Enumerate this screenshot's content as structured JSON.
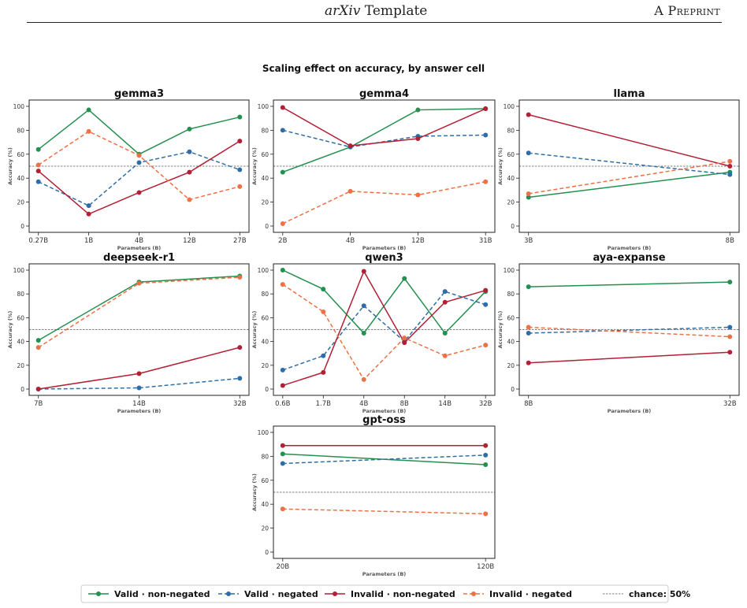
{
  "page_header": {
    "left_italic": "arXiv",
    "left_rest": " Template",
    "right": "A Preprint"
  },
  "figure_title": "Scaling effect on accuracy, by answer cell",
  "colors": {
    "valid_non_negated": "#22904e",
    "valid_negated": "#2f6da8",
    "invalid_non_negated": "#b31f34",
    "invalid_negated": "#ee7047",
    "chance": "#555555"
  },
  "legend": [
    {
      "label": "Valid · non-negated",
      "key": "valid_non_negated",
      "dashed": false
    },
    {
      "label": "Valid · negated",
      "key": "valid_negated",
      "dashed": true
    },
    {
      "label": "Invalid · non-negated",
      "key": "invalid_non_negated",
      "dashed": false
    },
    {
      "label": "Invalid · negated",
      "key": "invalid_negated",
      "dashed": true
    },
    {
      "label": "chance: 50%",
      "key": "chance",
      "dashed": true,
      "is_line_only": true
    }
  ],
  "chart_data": [
    {
      "type": "line",
      "title": "gemma3",
      "categories": [
        "0.27B",
        "1B",
        "4B",
        "12B",
        "27B"
      ],
      "xlabel": "Parameters (B)",
      "ylabel": "Accuracy (%)",
      "ylim": [
        0,
        100
      ],
      "yticks": [
        "0",
        "20",
        "40",
        "60",
        "80",
        "100"
      ],
      "chance": 50,
      "series": [
        {
          "name": "Valid · non-negated",
          "values": [
            64,
            97,
            60,
            81,
            91
          ]
        },
        {
          "name": "Valid · negated",
          "values": [
            37,
            17,
            53,
            62,
            47
          ]
        },
        {
          "name": "Invalid · non-negated",
          "values": [
            46,
            10,
            28,
            45,
            71
          ]
        },
        {
          "name": "Invalid · negated",
          "values": [
            51,
            79,
            59,
            22,
            33
          ]
        }
      ]
    },
    {
      "type": "line",
      "title": "gemma4",
      "categories": [
        "2B",
        "4B",
        "12B",
        "31B"
      ],
      "xlabel": "Parameters (B)",
      "ylabel": "Accuracy (%)",
      "ylim": [
        0,
        100
      ],
      "yticks": [
        "0",
        "20",
        "40",
        "60",
        "80",
        "100"
      ],
      "chance": 50,
      "series": [
        {
          "name": "Valid · non-negated",
          "values": [
            45,
            66,
            97,
            98
          ]
        },
        {
          "name": "Valid · negated",
          "values": [
            80,
            66,
            75,
            76
          ]
        },
        {
          "name": "Invalid · non-negated",
          "values": [
            99,
            67,
            73,
            98
          ]
        },
        {
          "name": "Invalid · negated",
          "values": [
            2,
            29,
            26,
            37
          ]
        }
      ]
    },
    {
      "type": "line",
      "title": "llama",
      "categories": [
        "3B",
        "8B"
      ],
      "xlabel": "Parameters (B)",
      "ylabel": "Accuracy (%)",
      "ylim": [
        0,
        100
      ],
      "yticks": [
        "0",
        "20",
        "40",
        "60",
        "80",
        "100"
      ],
      "chance": 50,
      "series": [
        {
          "name": "Valid · non-negated",
          "values": [
            24,
            45
          ]
        },
        {
          "name": "Valid · negated",
          "values": [
            61,
            43
          ]
        },
        {
          "name": "Invalid · non-negated",
          "values": [
            93,
            50
          ]
        },
        {
          "name": "Invalid · negated",
          "values": [
            27,
            54
          ]
        }
      ]
    },
    {
      "type": "line",
      "title": "deepseek-r1",
      "categories": [
        "7B",
        "14B",
        "32B"
      ],
      "xlabel": "Parameters (B)",
      "ylabel": "Accuracy (%)",
      "ylim": [
        0,
        100
      ],
      "yticks": [
        "0",
        "20",
        "40",
        "60",
        "80",
        "100"
      ],
      "chance": 50,
      "series": [
        {
          "name": "Valid · non-negated",
          "values": [
            41,
            90,
            95
          ]
        },
        {
          "name": "Valid · negated",
          "values": [
            0,
            1,
            9
          ]
        },
        {
          "name": "Invalid · non-negated",
          "values": [
            0,
            13,
            35
          ]
        },
        {
          "name": "Invalid · negated",
          "values": [
            35,
            89,
            94
          ]
        }
      ]
    },
    {
      "type": "line",
      "title": "qwen3",
      "categories": [
        "0.6B",
        "1.7B",
        "4B",
        "8B",
        "14B",
        "32B"
      ],
      "xlabel": "Parameters (B)",
      "ylabel": "Accuracy (%)",
      "ylim": [
        0,
        100
      ],
      "yticks": [
        "0",
        "20",
        "40",
        "60",
        "80",
        "100"
      ],
      "chance": 50,
      "series": [
        {
          "name": "Valid · non-negated",
          "values": [
            100,
            84,
            47,
            93,
            47,
            82
          ]
        },
        {
          "name": "Valid · negated",
          "values": [
            16,
            28,
            70,
            40,
            82,
            71
          ]
        },
        {
          "name": "Invalid · non-negated",
          "values": [
            3,
            14,
            99,
            39,
            73,
            83
          ]
        },
        {
          "name": "Invalid · negated",
          "values": [
            88,
            65,
            8,
            43,
            28,
            37
          ]
        }
      ]
    },
    {
      "type": "line",
      "title": "aya-expanse",
      "categories": [
        "8B",
        "32B"
      ],
      "xlabel": "Parameters (B)",
      "ylabel": "Accuracy (%)",
      "ylim": [
        0,
        100
      ],
      "yticks": [
        "0",
        "20",
        "40",
        "60",
        "80",
        "100"
      ],
      "chance": 50,
      "series": [
        {
          "name": "Valid · non-negated",
          "values": [
            86,
            90
          ]
        },
        {
          "name": "Valid · negated",
          "values": [
            47,
            52
          ]
        },
        {
          "name": "Invalid · non-negated",
          "values": [
            22,
            31
          ]
        },
        {
          "name": "Invalid · negated",
          "values": [
            52,
            44
          ]
        }
      ]
    },
    {
      "type": "line",
      "title": "gpt-oss",
      "categories": [
        "20B",
        "120B"
      ],
      "xlabel": "Parameters (B)",
      "ylabel": "Accuracy (%)",
      "ylim": [
        0,
        100
      ],
      "yticks": [
        "0",
        "20",
        "40",
        "60",
        "80",
        "100"
      ],
      "chance": 50,
      "series": [
        {
          "name": "Valid · non-negated",
          "values": [
            82,
            73
          ]
        },
        {
          "name": "Valid · negated",
          "values": [
            74,
            81
          ]
        },
        {
          "name": "Invalid · non-negated",
          "values": [
            89,
            89
          ]
        },
        {
          "name": "Invalid · negated",
          "values": [
            36,
            32
          ]
        }
      ]
    }
  ]
}
